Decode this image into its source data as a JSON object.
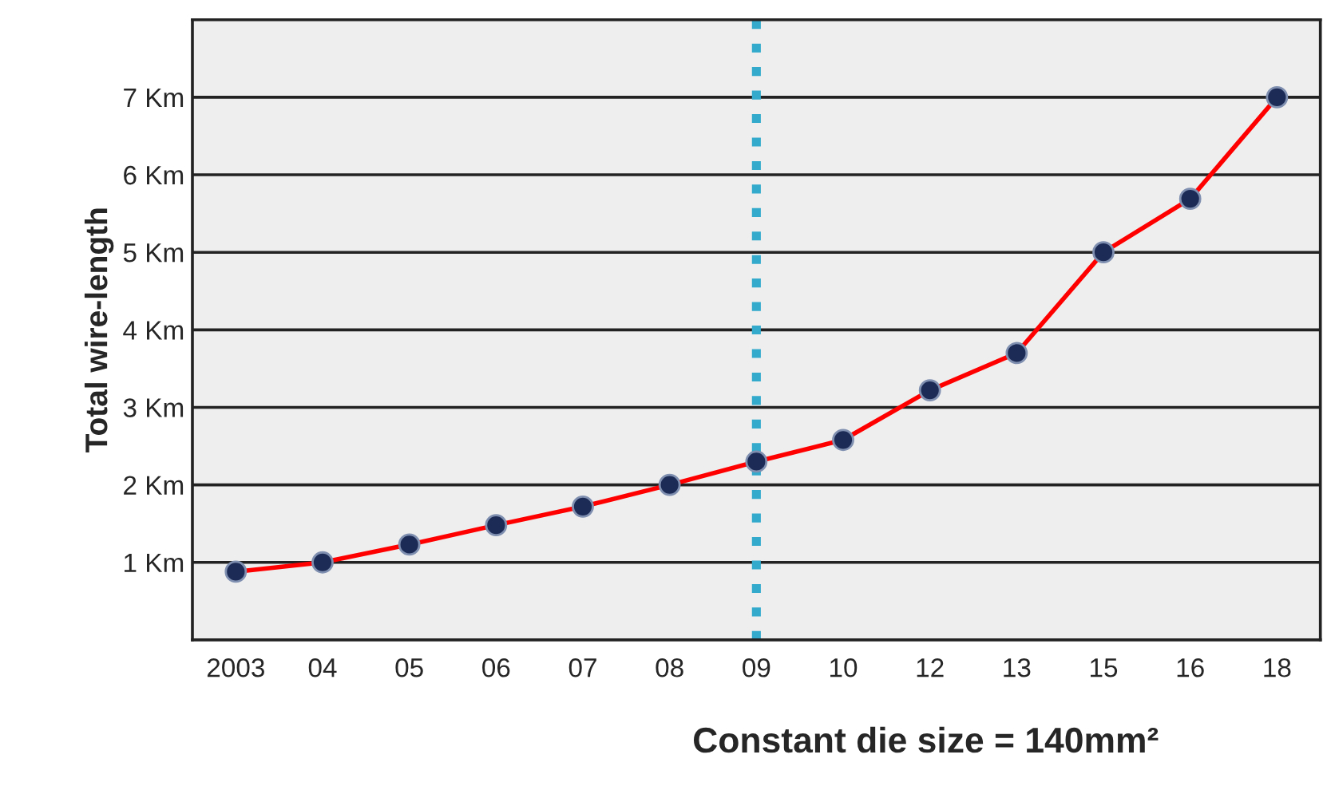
{
  "chart_data": {
    "type": "line",
    "xlabel": "Constant die size = 140mm²",
    "ylabel": "Total wire-length",
    "categories": [
      "2003",
      "04",
      "05",
      "06",
      "07",
      "08",
      "09",
      "10",
      "12",
      "13",
      "15",
      "16",
      "18"
    ],
    "series": [
      {
        "color": "#ff0000",
        "values": [
          0.88,
          1.0,
          1.23,
          1.48,
          1.72,
          2.0,
          2.3,
          2.58,
          3.22,
          3.7,
          5.0,
          5.69,
          7.0
        ]
      }
    ],
    "ylim": [
      0,
      8
    ],
    "yticks": [
      {
        "value": 1,
        "label": "1 Km"
      },
      {
        "value": 2,
        "label": "2 Km"
      },
      {
        "value": 3,
        "label": "3 Km"
      },
      {
        "value": 4,
        "label": "4 Km"
      },
      {
        "value": 5,
        "label": "5 Km"
      },
      {
        "value": 6,
        "label": "6 Km"
      },
      {
        "value": 7,
        "label": "7 Km"
      }
    ],
    "grid": "y",
    "marker": "circle",
    "line_style": "solid",
    "legend": false,
    "ref_lines": [
      {
        "axis": "x",
        "value": "09",
        "color": "#33aacc",
        "line_style": "dotted"
      }
    ]
  }
}
